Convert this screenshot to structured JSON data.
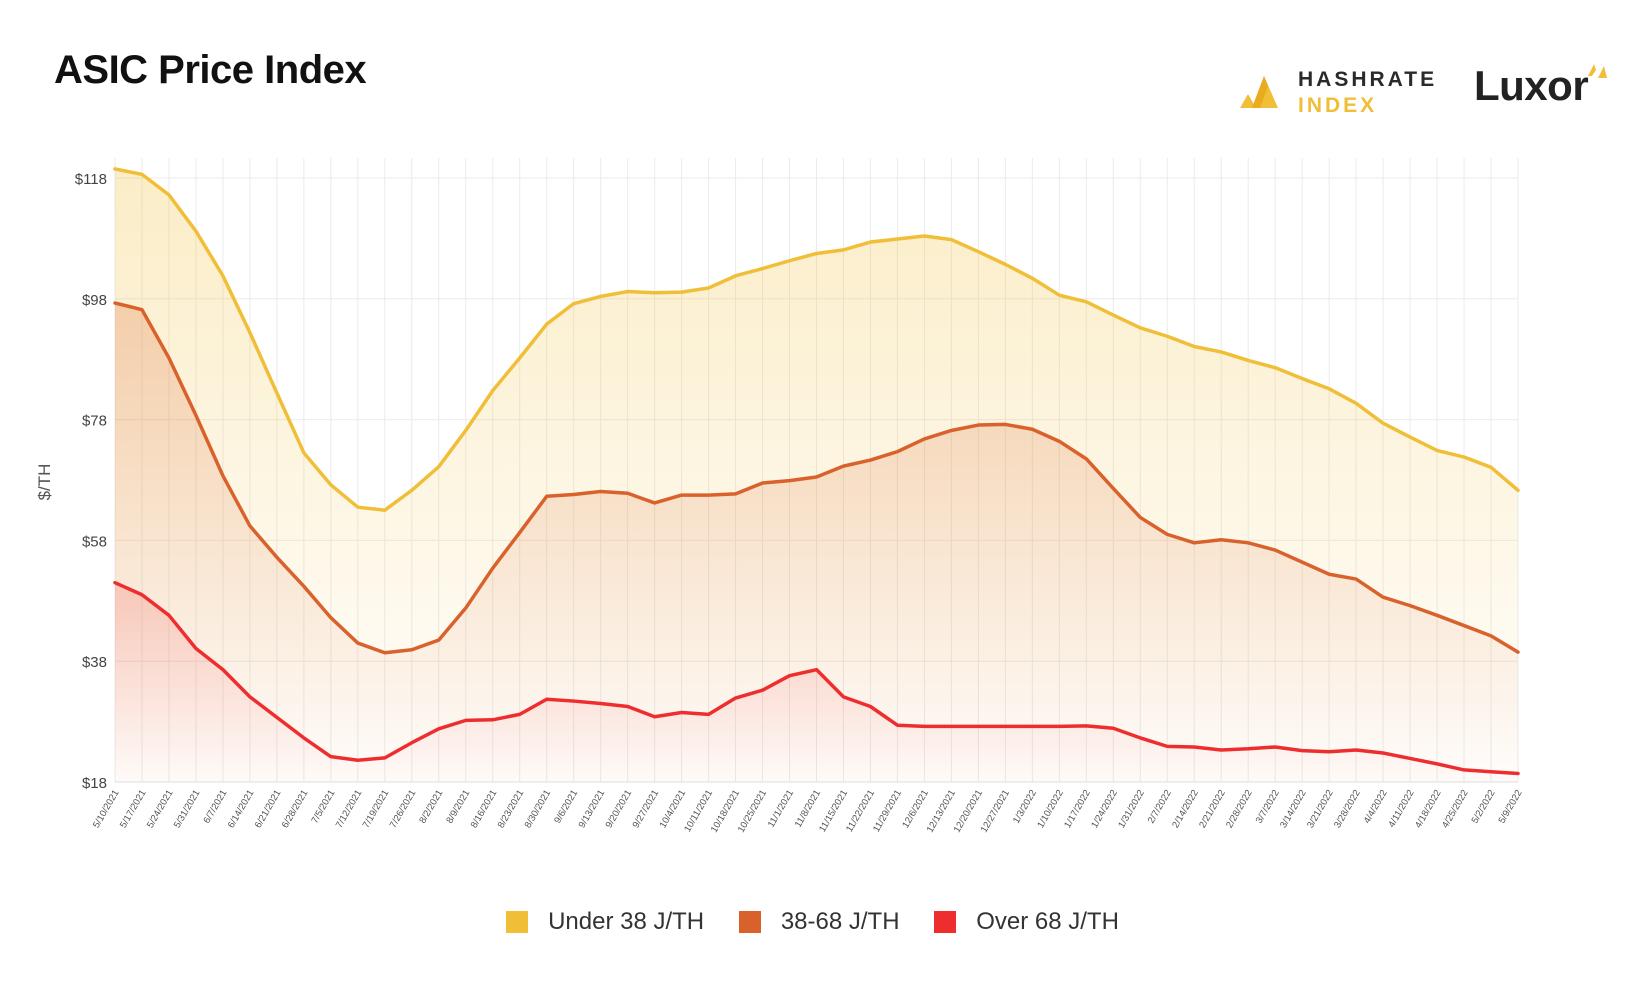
{
  "header": {
    "title": "ASIC Price Index",
    "brand_hashrate_line1": "HASHRATE",
    "brand_hashrate_line2": "INDEX",
    "brand_luxor": "Luxor"
  },
  "colors": {
    "under38": "#f0be37",
    "mid": "#d9622c",
    "over68": "#ee2e2e",
    "grid": "#ebebeb",
    "axis_text": "#444444"
  },
  "chart_data": {
    "type": "line",
    "title": "ASIC Price Index",
    "ylabel": "$/TH",
    "xlabel": "",
    "ylim": [
      18,
      118
    ],
    "yticks": [
      18,
      38,
      58,
      78,
      98,
      118
    ],
    "ytick_labels": [
      "$18",
      "$38",
      "$58",
      "$78",
      "$98",
      "$118"
    ],
    "grid": true,
    "legend_position": "bottom-center",
    "categories": [
      "5/10/2021",
      "5/17/2021",
      "5/24/2021",
      "5/31/2021",
      "6/7/2021",
      "6/14/2021",
      "6/21/2021",
      "6/28/2021",
      "7/5/2021",
      "7/12/2021",
      "7/19/2021",
      "7/26/2021",
      "8/2/2021",
      "8/9/2021",
      "8/16/2021",
      "8/23/2021",
      "8/30/2021",
      "9/6/2021",
      "9/13/2021",
      "9/20/2021",
      "9/27/2021",
      "10/4/2021",
      "10/11/2021",
      "10/18/2021",
      "10/25/2021",
      "11/1/2021",
      "11/8/2021",
      "11/15/2021",
      "11/22/2021",
      "11/29/2021",
      "12/6/2021",
      "12/13/2021",
      "12/20/2021",
      "12/27/2021",
      "1/3/2022",
      "1/10/2022",
      "1/17/2022",
      "1/24/2022",
      "1/31/2022",
      "2/7/2022",
      "2/14/2022",
      "2/21/2022",
      "2/28/2022",
      "3/7/2022",
      "3/14/2022",
      "3/21/2022",
      "3/28/2022",
      "4/4/2022",
      "4/11/2022",
      "4/18/2022",
      "4/25/2022",
      "5/2/2022",
      "5/9/2022"
    ],
    "series": [
      {
        "name": "Under 38 J/TH",
        "color": "#f0be37",
        "values": [
          119.5,
          118.6,
          115.2,
          109.2,
          101.8,
          92.4,
          82.4,
          72.5,
          67.2,
          63.5,
          63.0,
          66.3,
          70.2,
          76.2,
          82.8,
          88.2,
          93.8,
          97.2,
          98.4,
          99.2,
          99.0,
          99.1,
          99.8,
          101.8,
          103.0,
          104.3,
          105.5,
          106.1,
          107.4,
          107.9,
          108.4,
          107.8,
          105.8,
          103.7,
          101.4,
          98.6,
          97.5,
          95.3,
          93.2,
          91.8,
          90.1,
          89.2,
          87.8,
          86.6,
          84.8,
          83.1,
          80.7,
          77.4,
          75.1,
          72.9,
          71.8,
          70.1,
          66.3
        ],
        "fill_opacity": 0.28
      },
      {
        "name": "38-68 J/TH",
        "color": "#d9622c",
        "values": [
          97.3,
          96.2,
          88.2,
          78.7,
          68.7,
          60.4,
          55.2,
          50.4,
          45.2,
          41.0,
          39.4,
          39.9,
          41.5,
          46.8,
          53.4,
          59.3,
          65.3,
          65.6,
          66.1,
          65.8,
          64.2,
          65.5,
          65.5,
          65.7,
          67.5,
          67.9,
          68.5,
          70.3,
          71.3,
          72.7,
          74.8,
          76.2,
          77.1,
          77.2,
          76.4,
          74.4,
          71.5,
          66.6,
          61.8,
          59.0,
          57.6,
          58.1,
          57.6,
          56.4,
          54.4,
          52.4,
          51.6,
          48.6,
          47.2,
          45.6,
          43.9,
          42.2,
          39.5
        ],
        "fill_opacity": 0.24
      },
      {
        "name": "Over 68 J/TH",
        "color": "#ee2e2e",
        "values": [
          51.0,
          49.0,
          45.6,
          40.1,
          36.6,
          32.1,
          28.7,
          25.3,
          22.2,
          21.6,
          22.0,
          24.5,
          26.8,
          28.2,
          28.3,
          29.2,
          31.7,
          31.4,
          31.0,
          30.5,
          28.8,
          29.5,
          29.2,
          31.9,
          33.2,
          35.6,
          36.6,
          32.1,
          30.5,
          27.4,
          27.2,
          27.2,
          27.2,
          27.2,
          27.2,
          27.2,
          27.3,
          26.9,
          25.3,
          23.9,
          23.8,
          23.3,
          23.5,
          23.8,
          23.2,
          23.0,
          23.3,
          22.8,
          21.9,
          21.0,
          20.0,
          19.7,
          19.4
        ],
        "fill_opacity": 0.18
      }
    ]
  },
  "legend": {
    "items": [
      {
        "label": "Under 38 J/TH",
        "color": "#f0be37"
      },
      {
        "label": "38-68 J/TH",
        "color": "#d9622c"
      },
      {
        "label": "Over 68 J/TH",
        "color": "#ee2e2e"
      }
    ]
  }
}
